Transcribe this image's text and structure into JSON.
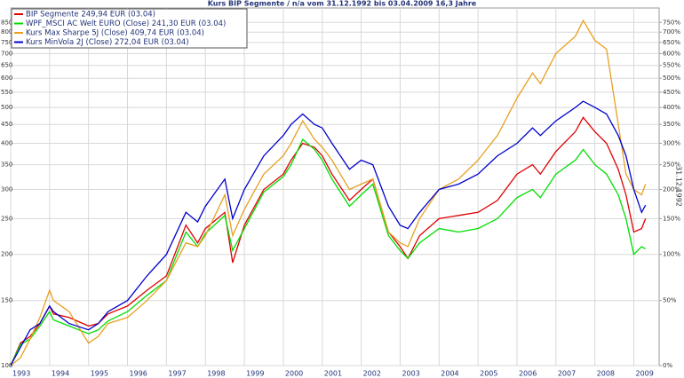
{
  "chart_data": {
    "type": "line",
    "title": "Kurs BIP Segmente / n/a vom 31.12.1992 bis 03.04.2009 16,3 Jahre",
    "y2label": "31.12.1992",
    "yscale": "log",
    "grid": true,
    "legend": "top-left",
    "x": [
      1993,
      1993.25,
      1993.5,
      1993.75,
      1994,
      1994.1,
      1994.5,
      1995,
      1995.25,
      1995.5,
      1996,
      1996.5,
      1997,
      1997.5,
      1997.8,
      1998,
      1998.5,
      1998.7,
      1999,
      1999.5,
      2000,
      2000.2,
      2000.5,
      2000.8,
      2001,
      2001.25,
      2001.7,
      2002,
      2002.3,
      2002.7,
      2003,
      2003.2,
      2003.5,
      2004,
      2004.5,
      2005,
      2005.5,
      2006,
      2006.4,
      2006.6,
      2007,
      2007.5,
      2007.7,
      2008,
      2008.3,
      2008.6,
      2008.8,
      2009,
      2009.2,
      2009.3
    ],
    "xlim": [
      1993,
      2009.65
    ],
    "xticks": [
      1993,
      1994,
      1995,
      1996,
      1997,
      1998,
      1999,
      2000,
      2001,
      2002,
      2003,
      2004,
      2005,
      2006,
      2007,
      2008,
      2009
    ],
    "ylim": [
      100,
      930
    ],
    "yticks": [
      100,
      150,
      200,
      250,
      300,
      350,
      400,
      450,
      500,
      550,
      600,
      650,
      700,
      750,
      800,
      850
    ],
    "y2lim": [
      0,
      830
    ],
    "y2ticks": [
      {
        "value": 0,
        "label": "0%"
      },
      {
        "value": 50,
        "label": "50%"
      },
      {
        "value": 100,
        "label": "100%"
      },
      {
        "value": 150,
        "label": "150%"
      },
      {
        "value": 200,
        "label": "200%"
      },
      {
        "value": 250,
        "label": "250%"
      },
      {
        "value": 300,
        "label": "300%"
      },
      {
        "value": 350,
        "label": "350%"
      },
      {
        "value": 400,
        "label": "400%"
      },
      {
        "value": 450,
        "label": "450%"
      },
      {
        "value": 500,
        "label": "500%"
      },
      {
        "value": 550,
        "label": "550%"
      },
      {
        "value": 600,
        "label": "600%"
      },
      {
        "value": 650,
        "label": "650%"
      },
      {
        "value": 700,
        "label": "700%"
      },
      {
        "value": 750,
        "label": "750%"
      }
    ],
    "series": [
      {
        "name": "BIP Segmente 249,94 EUR (03.04)",
        "color": "#dd0000",
        "values": [
          100,
          115,
          120,
          130,
          145,
          138,
          135,
          128,
          130,
          138,
          145,
          160,
          175,
          240,
          215,
          235,
          260,
          190,
          240,
          300,
          330,
          360,
          400,
          390,
          370,
          330,
          280,
          300,
          320,
          230,
          210,
          195,
          225,
          250,
          255,
          260,
          280,
          330,
          350,
          330,
          380,
          430,
          470,
          430,
          400,
          340,
          290,
          230,
          235,
          250
        ]
      },
      {
        "name": "WPF_MSCI AC Welt EURO (Close) 241,30 EUR (03.04)",
        "color": "#00dd00",
        "values": [
          100,
          114,
          118,
          128,
          140,
          133,
          128,
          122,
          125,
          132,
          140,
          155,
          170,
          230,
          210,
          228,
          255,
          205,
          235,
          295,
          325,
          350,
          410,
          385,
          360,
          320,
          270,
          290,
          310,
          225,
          205,
          195,
          215,
          235,
          230,
          235,
          250,
          285,
          300,
          285,
          330,
          360,
          385,
          350,
          330,
          290,
          250,
          200,
          210,
          207
        ]
      },
      {
        "name": "Kurs Max Sharpe 5J (Close) 409,74 EUR (03.04)",
        "color": "#e8a020",
        "values": [
          100,
          105,
          118,
          135,
          160,
          150,
          140,
          115,
          120,
          130,
          135,
          150,
          170,
          215,
          210,
          225,
          290,
          225,
          265,
          330,
          370,
          400,
          460,
          410,
          390,
          360,
          300,
          310,
          320,
          230,
          215,
          210,
          250,
          300,
          320,
          360,
          420,
          530,
          620,
          580,
          700,
          780,
          860,
          760,
          720,
          450,
          330,
          300,
          290,
          310
        ]
      },
      {
        "name": "Kurs MinVola 2J (Close) 272,04 EUR (03.04)",
        "color": "#0000cc",
        "values": [
          100,
          112,
          125,
          130,
          145,
          140,
          130,
          125,
          130,
          140,
          150,
          175,
          200,
          260,
          245,
          270,
          320,
          250,
          300,
          370,
          420,
          450,
          480,
          450,
          440,
          400,
          340,
          360,
          350,
          270,
          240,
          235,
          260,
          300,
          310,
          330,
          370,
          400,
          440,
          420,
          460,
          500,
          520,
          500,
          480,
          420,
          370,
          300,
          260,
          272
        ]
      }
    ]
  }
}
